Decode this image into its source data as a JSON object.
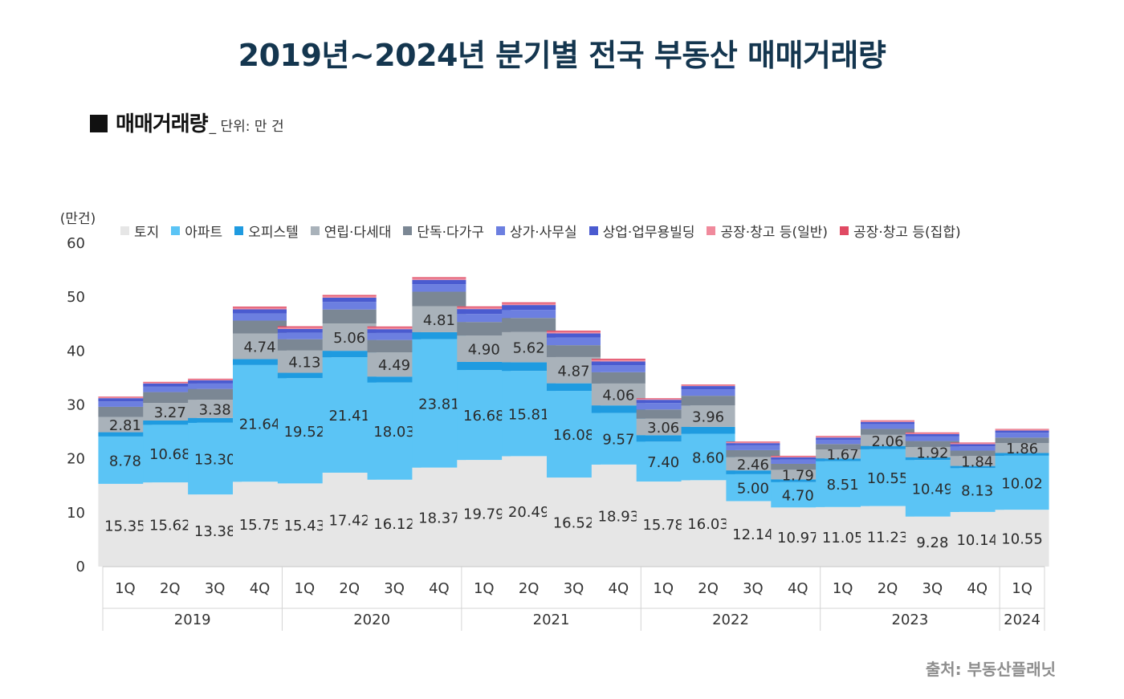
{
  "title": "2019년~2024년 분기별 전국 부동산 매매거래량",
  "subtitle": {
    "main": "매매거래량",
    "unit": "_ 단위: 만 건"
  },
  "source": "출처: 부동산플래닛",
  "chart_data": {
    "type": "bar",
    "stacked": true,
    "ylabel": "(만건)",
    "ylim": [
      0,
      60
    ],
    "yticks": [
      0,
      10,
      20,
      30,
      40,
      50,
      60
    ],
    "grid": false,
    "legend_position": "top",
    "categories": [
      "1Q",
      "2Q",
      "3Q",
      "4Q",
      "1Q",
      "2Q",
      "3Q",
      "4Q",
      "1Q",
      "2Q",
      "3Q",
      "4Q",
      "1Q",
      "2Q",
      "3Q",
      "4Q",
      "1Q",
      "2Q",
      "3Q",
      "4Q",
      "1Q"
    ],
    "year_groups": [
      {
        "label": "2019",
        "count": 4
      },
      {
        "label": "2020",
        "count": 4
      },
      {
        "label": "2021",
        "count": 4
      },
      {
        "label": "2022",
        "count": 4
      },
      {
        "label": "2023",
        "count": 4
      },
      {
        "label": "2024",
        "count": 1
      }
    ],
    "series": [
      {
        "name": "토지",
        "color": "#e6e6e6",
        "labeled": true,
        "values": [
          15.35,
          15.62,
          13.38,
          15.75,
          15.43,
          17.42,
          16.12,
          18.37,
          19.79,
          20.49,
          16.52,
          18.93,
          15.78,
          16.03,
          12.14,
          10.97,
          11.05,
          11.23,
          9.28,
          10.14,
          10.55
        ]
      },
      {
        "name": "아파트",
        "color": "#5bc4f5",
        "labeled": true,
        "values": [
          8.78,
          10.68,
          13.3,
          21.64,
          19.52,
          21.41,
          18.03,
          23.81,
          16.68,
          15.81,
          16.08,
          9.57,
          7.4,
          8.6,
          5.0,
          4.7,
          8.51,
          10.55,
          10.49,
          8.13,
          10.02
        ]
      },
      {
        "name": "오피스텔",
        "color": "#1f9be0",
        "labeled": false,
        "values": [
          0.8,
          0.8,
          0.9,
          1.1,
          1.0,
          1.2,
          1.1,
          1.3,
          1.5,
          1.6,
          1.4,
          1.4,
          1.2,
          1.3,
          0.7,
          0.5,
          0.5,
          0.6,
          0.5,
          0.4,
          0.5
        ]
      },
      {
        "name": "연립·다세대",
        "color": "#a9b2ba",
        "labeled": true,
        "values": [
          2.81,
          3.27,
          3.38,
          4.74,
          4.13,
          5.06,
          4.49,
          4.81,
          4.9,
          5.62,
          4.87,
          4.06,
          3.06,
          3.96,
          2.46,
          1.79,
          1.67,
          2.06,
          1.92,
          1.84,
          1.86
        ]
      },
      {
        "name": "단독·다가구",
        "color": "#7b8794",
        "labeled": false,
        "values": [
          1.9,
          2.0,
          2.0,
          2.4,
          2.1,
          2.6,
          2.3,
          2.7,
          2.5,
          2.6,
          2.2,
          2.1,
          1.7,
          1.8,
          1.3,
          1.1,
          1.0,
          1.1,
          1.1,
          1.0,
          1.0
        ]
      },
      {
        "name": "상가·사무실",
        "color": "#6c7fe0",
        "labeled": false,
        "values": [
          1.0,
          1.0,
          1.0,
          1.3,
          1.2,
          1.4,
          1.3,
          1.4,
          1.5,
          1.5,
          1.4,
          1.3,
          1.2,
          1.2,
          0.9,
          0.8,
          0.8,
          0.9,
          0.9,
          0.8,
          0.9
        ]
      },
      {
        "name": "상업·업무용빌딩",
        "color": "#4a5bd0",
        "labeled": false,
        "values": [
          0.6,
          0.6,
          0.6,
          0.8,
          0.7,
          0.8,
          0.7,
          0.8,
          0.9,
          0.9,
          0.8,
          0.7,
          0.6,
          0.6,
          0.4,
          0.4,
          0.4,
          0.4,
          0.4,
          0.4,
          0.4
        ]
      },
      {
        "name": "공장·창고 등(일반)",
        "color": "#f08a9c",
        "labeled": false,
        "values": [
          0.2,
          0.2,
          0.2,
          0.3,
          0.3,
          0.3,
          0.3,
          0.3,
          0.3,
          0.3,
          0.3,
          0.3,
          0.2,
          0.2,
          0.2,
          0.2,
          0.2,
          0.2,
          0.2,
          0.2,
          0.2
        ]
      },
      {
        "name": "공장·창고 등(집합)",
        "color": "#e04a63",
        "labeled": false,
        "values": [
          0.1,
          0.1,
          0.1,
          0.2,
          0.2,
          0.2,
          0.2,
          0.2,
          0.2,
          0.2,
          0.2,
          0.2,
          0.1,
          0.1,
          0.1,
          0.1,
          0.1,
          0.1,
          0.1,
          0.1,
          0.1
        ]
      }
    ]
  }
}
